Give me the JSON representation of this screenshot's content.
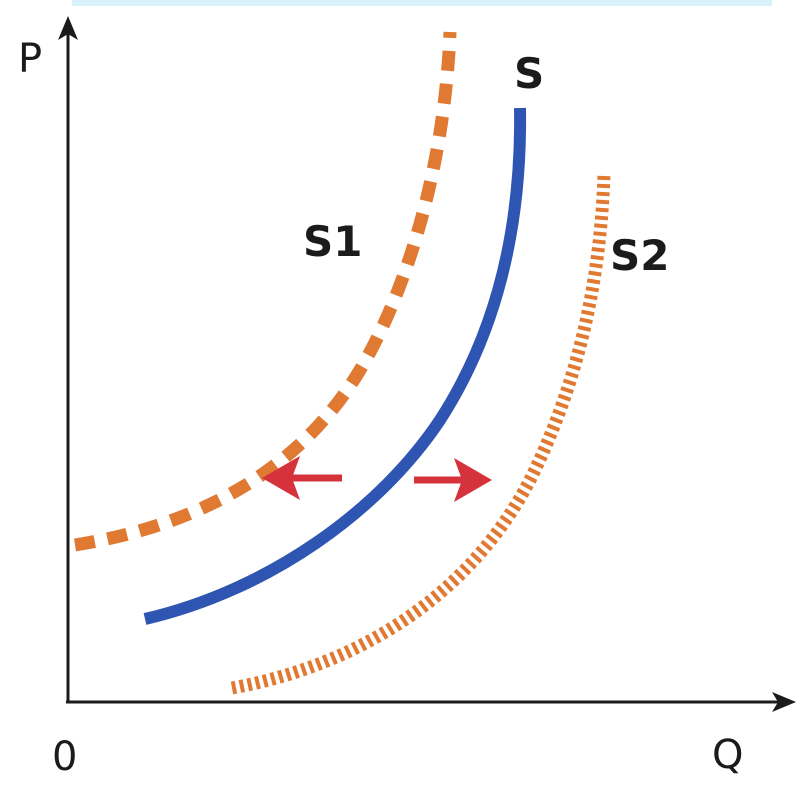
{
  "diagram": {
    "axis_y_label": "P",
    "axis_x_label": "Q",
    "origin_label": "0",
    "curves": [
      {
        "id": "s1",
        "label": "S1",
        "style": "dashed",
        "color": "#e07a33"
      },
      {
        "id": "s",
        "label": "S",
        "style": "solid",
        "color": "#2f55b3"
      },
      {
        "id": "s2",
        "label": "S2",
        "style": "dotted",
        "color": "#e07a33"
      }
    ],
    "shift_arrows": [
      {
        "id": "shift-left",
        "direction": "left",
        "color": "#d6323b"
      },
      {
        "id": "shift-right",
        "direction": "right",
        "color": "#d6323b"
      }
    ],
    "colors": {
      "axis": "#1b1b1b",
      "top_band": "#d8f1fa"
    }
  }
}
